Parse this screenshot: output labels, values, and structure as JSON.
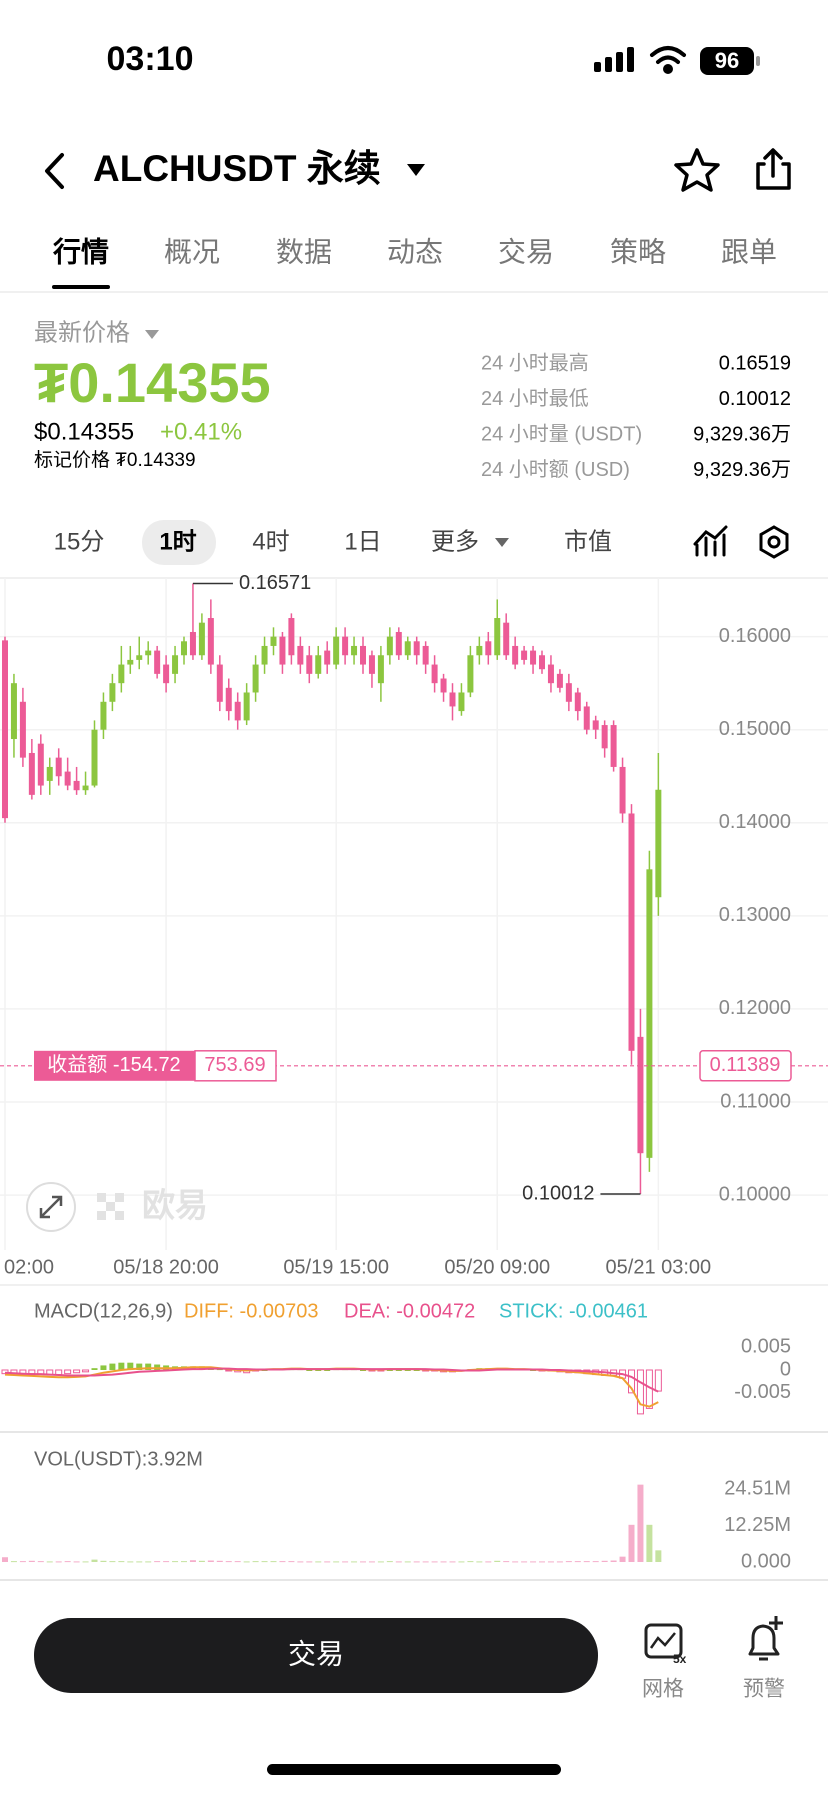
{
  "status_bar": {
    "time": "03:10",
    "battery": "96"
  },
  "header": {
    "title": "ALCHUSDT 永续"
  },
  "tabs": [
    "行情",
    "概况",
    "数据",
    "动态",
    "交易",
    "策略",
    "跟单"
  ],
  "price_panel": {
    "label": "最新价格",
    "price": "₮0.14355",
    "usd_price": "$0.14355",
    "change": "+0.41%",
    "mark_price": "标记价格 ₮0.14339",
    "stats": [
      {
        "label": "24 小时最高",
        "value": "0.16519"
      },
      {
        "label": "24 小时最低",
        "value": "0.10012"
      },
      {
        "label": "24 小时量 (USDT)",
        "value": "9,329.36万"
      },
      {
        "label": "24 小时额 (USD)",
        "value": "9,329.36万"
      }
    ]
  },
  "timeframes": [
    "15分",
    "1时",
    "4时",
    "1日",
    "更多",
    "市值"
  ],
  "chart": {
    "type": "candlestick",
    "up_color": "#8cc63f",
    "down_color": "#ec5b96",
    "open": [
      0.1596,
      0.149,
      0.153,
      0.1475,
      0.1485,
      0.1445,
      0.147,
      0.1455,
      0.1445,
      0.1435,
      0.144,
      0.15,
      0.153,
      0.155,
      0.157,
      0.1575,
      0.158,
      0.1585,
      0.157,
      0.156,
      0.158,
      0.1605,
      0.158,
      0.162,
      0.157,
      0.1545,
      0.153,
      0.151,
      0.154,
      0.157,
      0.159,
      0.16,
      0.162,
      0.159,
      0.158,
      0.156,
      0.1585,
      0.157,
      0.16,
      0.158,
      0.159,
      0.158,
      0.155,
      0.158,
      0.1605,
      0.158,
      0.1595,
      0.159,
      0.157,
      0.1555,
      0.154,
      0.152,
      0.154,
      0.158,
      0.1595,
      0.158,
      0.1615,
      0.159,
      0.1585,
      0.1585,
      0.158,
      0.157,
      0.156,
      0.155,
      0.154,
      0.1525,
      0.151,
      0.1505,
      0.1505,
      0.146,
      0.141,
      0.117,
      0.104,
      0.132
    ],
    "high": [
      0.16,
      0.156,
      0.1545,
      0.149,
      0.1495,
      0.147,
      0.148,
      0.147,
      0.146,
      0.1455,
      0.151,
      0.154,
      0.156,
      0.159,
      0.159,
      0.16,
      0.1595,
      0.159,
      0.158,
      0.159,
      0.16,
      0.16571,
      0.1625,
      0.164,
      0.158,
      0.1555,
      0.154,
      0.155,
      0.158,
      0.16,
      0.161,
      0.1605,
      0.1625,
      0.16,
      0.159,
      0.159,
      0.1595,
      0.161,
      0.161,
      0.16,
      0.16,
      0.1585,
      0.159,
      0.161,
      0.161,
      0.16,
      0.16,
      0.1595,
      0.158,
      0.156,
      0.155,
      0.155,
      0.159,
      0.16,
      0.1605,
      0.164,
      0.1625,
      0.16,
      0.159,
      0.159,
      0.1585,
      0.158,
      0.1565,
      0.156,
      0.1545,
      0.153,
      0.1515,
      0.151,
      0.151,
      0.147,
      0.142,
      0.12,
      0.137,
      0.1475
    ],
    "low": [
      0.14,
      0.147,
      0.146,
      0.1425,
      0.143,
      0.143,
      0.144,
      0.1435,
      0.143,
      0.143,
      0.1438,
      0.149,
      0.152,
      0.154,
      0.156,
      0.1565,
      0.157,
      0.1555,
      0.154,
      0.155,
      0.157,
      0.1575,
      0.1575,
      0.156,
      0.152,
      0.151,
      0.15,
      0.1505,
      0.153,
      0.156,
      0.158,
      0.156,
      0.157,
      0.156,
      0.155,
      0.1555,
      0.156,
      0.1565,
      0.157,
      0.157,
      0.156,
      0.1545,
      0.153,
      0.157,
      0.1575,
      0.1575,
      0.157,
      0.156,
      0.154,
      0.153,
      0.151,
      0.1515,
      0.1535,
      0.157,
      0.157,
      0.1575,
      0.1575,
      0.1565,
      0.157,
      0.156,
      0.156,
      0.154,
      0.154,
      0.152,
      0.151,
      0.1495,
      0.149,
      0.147,
      0.1455,
      0.14,
      0.114,
      0.10012,
      0.1025,
      0.13
    ],
    "close": [
      0.1405,
      0.155,
      0.147,
      0.143,
      0.144,
      0.146,
      0.145,
      0.144,
      0.1435,
      0.144,
      0.15,
      0.153,
      0.155,
      0.157,
      0.1575,
      0.158,
      0.1585,
      0.156,
      0.155,
      0.158,
      0.1595,
      0.158,
      0.1615,
      0.157,
      0.153,
      0.152,
      0.151,
      0.154,
      0.157,
      0.159,
      0.16,
      0.157,
      0.158,
      0.157,
      0.156,
      0.158,
      0.157,
      0.16,
      0.158,
      0.159,
      0.157,
      0.156,
      0.158,
      0.16,
      0.158,
      0.1595,
      0.158,
      0.157,
      0.155,
      0.154,
      0.1525,
      0.154,
      0.158,
      0.159,
      0.158,
      0.162,
      0.158,
      0.157,
      0.1575,
      0.157,
      0.1565,
      0.155,
      0.1545,
      0.153,
      0.152,
      0.15,
      0.15,
      0.148,
      0.146,
      0.141,
      0.1155,
      0.1045,
      0.135,
      0.14355
    ],
    "ylim": [
      0.0941,
      0.1663
    ],
    "yticks": [
      {
        "value": 0.16,
        "label": "0.16000"
      },
      {
        "value": 0.15,
        "label": "0.15000"
      },
      {
        "value": 0.14,
        "label": "0.14000"
      },
      {
        "value": 0.13,
        "label": "0.13000"
      },
      {
        "value": 0.12,
        "label": "0.12000"
      },
      {
        "value": 0.11,
        "label": "0.11000"
      },
      {
        "value": 0.1,
        "label": "0.10000"
      }
    ],
    "xticks": [
      {
        "value": 0,
        "label": "02:00"
      },
      {
        "value": 18,
        "label": "05/18 20:00"
      },
      {
        "value": 37,
        "label": "05/19 15:00"
      },
      {
        "value": 55,
        "label": "05/20 09:00"
      },
      {
        "value": 73,
        "label": "05/21 03:00"
      }
    ],
    "grid": true,
    "max_label": 0.16571,
    "min_label": 0.10012,
    "position": {
      "label": "收益额 -154.72",
      "value": "753.69",
      "price": 0.11389
    },
    "watermark": "欧易"
  },
  "macd": {
    "label": "MACD(12,26,9)",
    "diff_label": "DIFF: -0.00703",
    "dea_label": "DEA: -0.00472",
    "stick_label": "STICK: -0.00461",
    "diff_color": "#f0a030",
    "dea_color": "#e8518c",
    "stick_color": "#3cc0c8",
    "diff": [
      -0.001,
      -0.0011,
      -0.0012,
      -0.0013,
      -0.0014,
      -0.0015,
      -0.0016,
      -0.0016,
      -0.0015,
      -0.0014,
      -0.001,
      -0.0006,
      -0.0003,
      0,
      0.0002,
      0.0003,
      0.0004,
      0.0004,
      0.0004,
      0.0004,
      0.0005,
      0.0006,
      0.0006,
      0.0006,
      0.0004,
      0.0002,
      0,
      -0.0001,
      0,
      0.0001,
      0.0002,
      0.0002,
      0.0003,
      0.0003,
      0.0002,
      0.0002,
      0.0002,
      0.0003,
      0.0003,
      0.0003,
      0.0002,
      0.0001,
      0.0001,
      0.0002,
      0.0002,
      0.0002,
      0.0002,
      0.0001,
      0,
      -0.0001,
      -0.0002,
      -0.0002,
      0,
      0.0001,
      0.0002,
      0.0003,
      0.0003,
      0.0002,
      0.0002,
      0.0001,
      0,
      -0.0001,
      -0.0002,
      -0.0004,
      -0.0005,
      -0.0007,
      -0.0009,
      -0.0011,
      -0.0013,
      -0.0018,
      -0.004,
      -0.0075,
      -0.008,
      -0.00703
    ],
    "dea": [
      -0.0006,
      -0.0007,
      -0.0008,
      -0.0009,
      -0.0009,
      -0.001,
      -0.0011,
      -0.0012,
      -0.0012,
      -0.0012,
      -0.0012,
      -0.0011,
      -0.001,
      -0.0008,
      -0.0006,
      -0.0004,
      -0.0003,
      -0.0002,
      -0.0001,
      0,
      0.0001,
      0.0002,
      0.0002,
      0.0003,
      0.0003,
      0.0003,
      0.0002,
      0.0002,
      0.0001,
      0.0001,
      0.0001,
      0.0001,
      0.0002,
      0.0002,
      0.0002,
      0.0002,
      0.0002,
      0.0002,
      0.0002,
      0.0002,
      0.0002,
      0.0002,
      0.0002,
      0.0002,
      0.0002,
      0.0002,
      0.0002,
      0.0002,
      0.0001,
      0.0001,
      0,
      -0.0001,
      -0.0001,
      -0.0001,
      0,
      0.0001,
      0.0001,
      0.0001,
      0.0001,
      0.0001,
      0.0001,
      0,
      0,
      -0.0001,
      -0.0002,
      -0.0003,
      -0.0004,
      -0.0005,
      -0.0007,
      -0.0009,
      -0.0015,
      -0.0027,
      -0.0038,
      -0.00472
    ],
    "stick": [
      -0.0008,
      -0.0008,
      -0.0008,
      -0.0008,
      -0.001,
      -0.001,
      -0.001,
      -0.0008,
      -0.0006,
      -0.0004,
      0.0004,
      0.001,
      0.0014,
      0.0016,
      0.0016,
      0.0014,
      0.0014,
      0.0012,
      0.001,
      0.0008,
      0.0008,
      0.0008,
      0.0008,
      0.0006,
      0.0002,
      -0.0002,
      -0.0004,
      -0.0006,
      -0.0002,
      0,
      0.0002,
      0.0002,
      0.0002,
      0.0002,
      0,
      0,
      0,
      0.0002,
      0.0002,
      0.0002,
      0,
      -0.0002,
      -0.0002,
      0,
      0,
      0,
      0,
      -0.0002,
      -0.0002,
      -0.0004,
      -0.0004,
      -0.0002,
      0.0002,
      0.0004,
      0.0004,
      0.0004,
      0.0004,
      0.0002,
      0.0002,
      0,
      -0.0002,
      -0.0002,
      -0.0004,
      -0.0006,
      -0.0006,
      -0.0008,
      -0.001,
      -0.0012,
      -0.0012,
      -0.0018,
      -0.005,
      -0.0096,
      -0.0084,
      -0.00461
    ],
    "ylim": [
      -0.014,
      0.014
    ],
    "yticks": [
      0.005,
      0,
      -0.005
    ]
  },
  "volume": {
    "label": "VOL(USDT):3.92M",
    "values": [
      1.6,
      0.3,
      0.3,
      0.4,
      0.3,
      0.2,
      0.2,
      0.3,
      0.2,
      0.2,
      0.8,
      0.4,
      0.3,
      0.3,
      0.2,
      0.2,
      0.2,
      0.3,
      0.3,
      0.3,
      0.3,
      0.6,
      0.4,
      0.5,
      0.4,
      0.3,
      0.3,
      0.2,
      0.3,
      0.3,
      0.3,
      0.3,
      0.3,
      0.2,
      0.2,
      0.2,
      0.2,
      0.2,
      0.2,
      0.2,
      0.2,
      0.2,
      0.2,
      0.3,
      0.2,
      0.2,
      0.2,
      0.2,
      0.2,
      0.2,
      0.2,
      0.2,
      0.3,
      0.2,
      0.2,
      0.4,
      0.3,
      0.2,
      0.2,
      0.2,
      0.2,
      0.2,
      0.2,
      0.3,
      0.3,
      0.3,
      0.3,
      0.4,
      0.5,
      1.8,
      12.5,
      26.0,
      12.5,
      3.92
    ],
    "ylim": [
      0,
      40
    ],
    "yticks": [
      {
        "value": 24.51,
        "label": "24.51M"
      },
      {
        "value": 12.25,
        "label": "12.25M"
      },
      {
        "value": 0,
        "label": "0.000"
      }
    ]
  },
  "bottom_bar": {
    "button": "交易",
    "grid": "网格",
    "grid_badge": "5x",
    "alert": "预警"
  }
}
